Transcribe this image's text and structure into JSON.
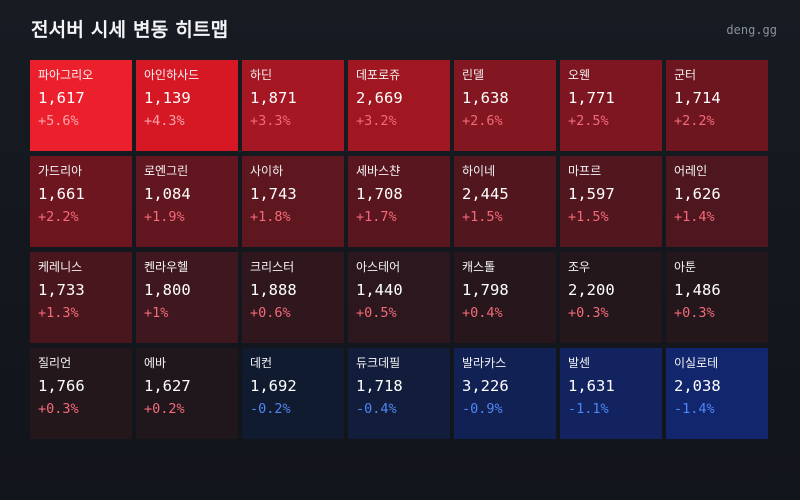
{
  "header": {
    "title": "전서버 시세 변동 히트맵",
    "brand": "deng.gg"
  },
  "heatmap": {
    "colors": {
      "up_text": "#f46a78",
      "up_text_strong": "#f8a3ab",
      "down_text": "#4f86f3"
    },
    "servers": [
      {
        "name": "파아그리오",
        "price": "1,617",
        "change": "+5.6%",
        "pct": 5.6
      },
      {
        "name": "아인하사드",
        "price": "1,139",
        "change": "+4.3%",
        "pct": 4.3
      },
      {
        "name": "하딘",
        "price": "1,871",
        "change": "+3.3%",
        "pct": 3.3
      },
      {
        "name": "데포로쥬",
        "price": "2,669",
        "change": "+3.2%",
        "pct": 3.2
      },
      {
        "name": "린델",
        "price": "1,638",
        "change": "+2.6%",
        "pct": 2.6
      },
      {
        "name": "오웬",
        "price": "1,771",
        "change": "+2.5%",
        "pct": 2.5
      },
      {
        "name": "군터",
        "price": "1,714",
        "change": "+2.2%",
        "pct": 2.2
      },
      {
        "name": "가드리아",
        "price": "1,661",
        "change": "+2.2%",
        "pct": 2.2
      },
      {
        "name": "로엔그린",
        "price": "1,084",
        "change": "+1.9%",
        "pct": 1.9
      },
      {
        "name": "사이하",
        "price": "1,743",
        "change": "+1.8%",
        "pct": 1.8
      },
      {
        "name": "세바스챤",
        "price": "1,708",
        "change": "+1.7%",
        "pct": 1.7
      },
      {
        "name": "하이네",
        "price": "2,445",
        "change": "+1.5%",
        "pct": 1.5
      },
      {
        "name": "마프르",
        "price": "1,597",
        "change": "+1.5%",
        "pct": 1.5
      },
      {
        "name": "어레인",
        "price": "1,626",
        "change": "+1.4%",
        "pct": 1.4
      },
      {
        "name": "케레니스",
        "price": "1,733",
        "change": "+1.3%",
        "pct": 1.3
      },
      {
        "name": "켄라우헬",
        "price": "1,800",
        "change": "+1%",
        "pct": 1.0
      },
      {
        "name": "크리스터",
        "price": "1,888",
        "change": "+0.6%",
        "pct": 0.6
      },
      {
        "name": "아스테어",
        "price": "1,440",
        "change": "+0.5%",
        "pct": 0.5
      },
      {
        "name": "캐스톨",
        "price": "1,798",
        "change": "+0.4%",
        "pct": 0.4
      },
      {
        "name": "조우",
        "price": "2,200",
        "change": "+0.3%",
        "pct": 0.3
      },
      {
        "name": "아툰",
        "price": "1,486",
        "change": "+0.3%",
        "pct": 0.3
      },
      {
        "name": "질리언",
        "price": "1,766",
        "change": "+0.3%",
        "pct": 0.3
      },
      {
        "name": "에바",
        "price": "1,627",
        "change": "+0.2%",
        "pct": 0.2
      },
      {
        "name": "데컨",
        "price": "1,692",
        "change": "-0.2%",
        "pct": -0.2
      },
      {
        "name": "듀크데필",
        "price": "1,718",
        "change": "-0.4%",
        "pct": -0.4
      },
      {
        "name": "발라카스",
        "price": "3,226",
        "change": "-0.9%",
        "pct": -0.9
      },
      {
        "name": "발센",
        "price": "1,631",
        "change": "-1.1%",
        "pct": -1.1
      },
      {
        "name": "이실로테",
        "price": "2,038",
        "change": "-1.4%",
        "pct": -1.4
      }
    ]
  }
}
